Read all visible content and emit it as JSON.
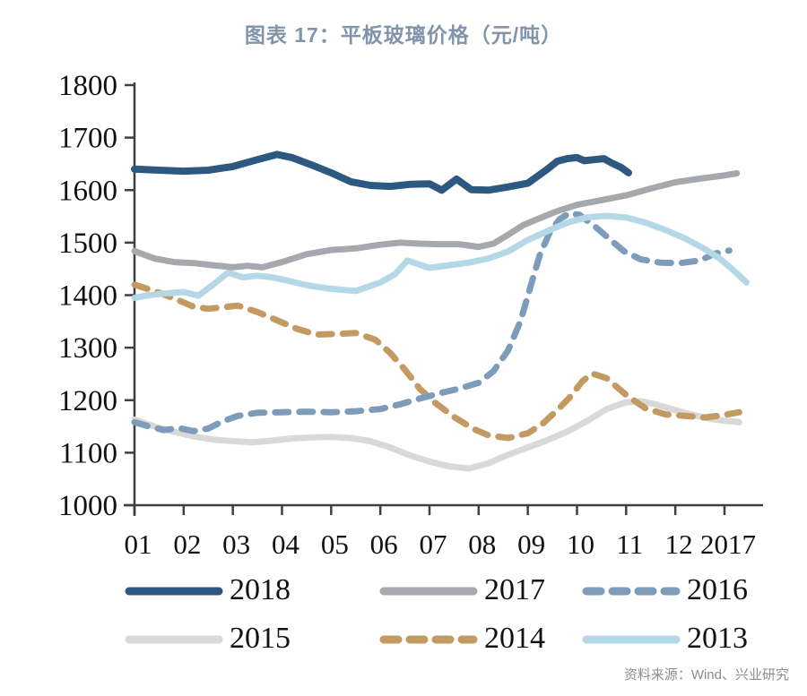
{
  "title": "图表 17：平板玻璃价格（元/吨）",
  "source": "资料来源：Wind、兴业研究",
  "chart_data": {
    "type": "line",
    "title": "图表 17：平板玻璃价格（元/吨）",
    "xlabel": "",
    "ylabel": "",
    "ylim": [
      1000,
      1800
    ],
    "grid": false,
    "legend_position": "bottom",
    "y_ticks": [
      1800,
      1700,
      1600,
      1500,
      1400,
      1300,
      1200,
      1100,
      1000
    ],
    "x_ticks": [
      {
        "m": 1,
        "label": "01"
      },
      {
        "m": 2,
        "label": "02"
      },
      {
        "m": 3,
        "label": "03"
      },
      {
        "m": 4,
        "label": "04"
      },
      {
        "m": 5,
        "label": "05"
      },
      {
        "m": 6,
        "label": "06"
      },
      {
        "m": 7,
        "label": "07"
      },
      {
        "m": 8,
        "label": "08"
      },
      {
        "m": 9,
        "label": "09"
      },
      {
        "m": 10,
        "label": "10"
      },
      {
        "m": 11,
        "label": "11"
      },
      {
        "m": 12,
        "label": "12"
      },
      {
        "m": 13,
        "label": "2017"
      }
    ],
    "series": [
      {
        "name": "2018",
        "color": "#2d5880",
        "style": "solid",
        "points": [
          [
            1,
            1640
          ],
          [
            1.5,
            1638
          ],
          [
            2,
            1636
          ],
          [
            2.5,
            1638
          ],
          [
            3,
            1645
          ],
          [
            3.5,
            1658
          ],
          [
            3.9,
            1668
          ],
          [
            4.2,
            1662
          ],
          [
            4.6,
            1648
          ],
          [
            5,
            1633
          ],
          [
            5.4,
            1616
          ],
          [
            5.8,
            1609
          ],
          [
            6.2,
            1607
          ],
          [
            6.6,
            1611
          ],
          [
            7,
            1612
          ],
          [
            7.25,
            1600
          ],
          [
            7.55,
            1621
          ],
          [
            7.85,
            1601
          ],
          [
            8.2,
            1600
          ],
          [
            8.6,
            1606
          ],
          [
            9,
            1613
          ],
          [
            9.4,
            1640
          ],
          [
            9.6,
            1655
          ],
          [
            9.8,
            1660
          ],
          [
            10,
            1662
          ],
          [
            10.15,
            1656
          ],
          [
            10.35,
            1658
          ],
          [
            10.55,
            1660
          ],
          [
            10.7,
            1652
          ],
          [
            10.9,
            1643
          ],
          [
            11.05,
            1633
          ]
        ]
      },
      {
        "name": "2017",
        "color": "#a5a9ad",
        "style": "solid",
        "points": [
          [
            1,
            1484
          ],
          [
            1.4,
            1470
          ],
          [
            1.8,
            1463
          ],
          [
            2.2,
            1461
          ],
          [
            2.6,
            1457
          ],
          [
            3,
            1453
          ],
          [
            3.3,
            1456
          ],
          [
            3.6,
            1453
          ],
          [
            4,
            1463
          ],
          [
            4.5,
            1478
          ],
          [
            5,
            1486
          ],
          [
            5.5,
            1489
          ],
          [
            6,
            1496
          ],
          [
            6.4,
            1500
          ],
          [
            6.8,
            1498
          ],
          [
            7.2,
            1497
          ],
          [
            7.6,
            1497
          ],
          [
            8,
            1492
          ],
          [
            8.3,
            1498
          ],
          [
            8.6,
            1515
          ],
          [
            8.9,
            1533
          ],
          [
            9.2,
            1545
          ],
          [
            9.6,
            1560
          ],
          [
            10,
            1572
          ],
          [
            10.5,
            1581
          ],
          [
            11,
            1590
          ],
          [
            11.5,
            1603
          ],
          [
            12,
            1615
          ],
          [
            12.5,
            1622
          ],
          [
            13,
            1628
          ],
          [
            13.25,
            1632
          ]
        ]
      },
      {
        "name": "2016",
        "color": "#7d9cba",
        "style": "dashed",
        "points": [
          [
            1,
            1158
          ],
          [
            1.3,
            1150
          ],
          [
            1.6,
            1143
          ],
          [
            1.9,
            1147
          ],
          [
            2.2,
            1141
          ],
          [
            2.5,
            1146
          ],
          [
            2.8,
            1160
          ],
          [
            3.1,
            1170
          ],
          [
            3.5,
            1176
          ],
          [
            4,
            1177
          ],
          [
            4.5,
            1178
          ],
          [
            5,
            1177
          ],
          [
            5.5,
            1179
          ],
          [
            6,
            1183
          ],
          [
            6.4,
            1192
          ],
          [
            6.8,
            1203
          ],
          [
            7.2,
            1213
          ],
          [
            7.6,
            1222
          ],
          [
            8,
            1233
          ],
          [
            8.3,
            1255
          ],
          [
            8.6,
            1295
          ],
          [
            8.85,
            1350
          ],
          [
            9.05,
            1415
          ],
          [
            9.25,
            1478
          ],
          [
            9.45,
            1520
          ],
          [
            9.65,
            1545
          ],
          [
            9.85,
            1556
          ],
          [
            10.05,
            1553
          ],
          [
            10.35,
            1532
          ],
          [
            10.65,
            1508
          ],
          [
            10.95,
            1484
          ],
          [
            11.3,
            1468
          ],
          [
            11.7,
            1462
          ],
          [
            12.1,
            1461
          ],
          [
            12.5,
            1466
          ],
          [
            12.8,
            1479
          ],
          [
            13.1,
            1485
          ]
        ]
      },
      {
        "name": "2015",
        "color": "#d9d9d9",
        "style": "solid",
        "points": [
          [
            1,
            1163
          ],
          [
            1.4,
            1150
          ],
          [
            1.8,
            1140
          ],
          [
            2.2,
            1131
          ],
          [
            2.6,
            1125
          ],
          [
            3,
            1122
          ],
          [
            3.4,
            1120
          ],
          [
            3.8,
            1123
          ],
          [
            4.2,
            1127
          ],
          [
            4.6,
            1129
          ],
          [
            5,
            1130
          ],
          [
            5.4,
            1128
          ],
          [
            5.8,
            1122
          ],
          [
            6.2,
            1110
          ],
          [
            6.6,
            1095
          ],
          [
            7,
            1083
          ],
          [
            7.4,
            1074
          ],
          [
            7.8,
            1070
          ],
          [
            8.2,
            1080
          ],
          [
            8.6,
            1096
          ],
          [
            9,
            1110
          ],
          [
            9.4,
            1124
          ],
          [
            9.8,
            1140
          ],
          [
            10.2,
            1160
          ],
          [
            10.6,
            1183
          ],
          [
            11,
            1196
          ],
          [
            11.3,
            1198
          ],
          [
            11.6,
            1192
          ],
          [
            12,
            1181
          ],
          [
            12.4,
            1171
          ],
          [
            12.8,
            1163
          ],
          [
            13.3,
            1158
          ]
        ]
      },
      {
        "name": "2014",
        "color": "#c39a62",
        "style": "dashed",
        "points": [
          [
            1,
            1420
          ],
          [
            1.4,
            1408
          ],
          [
            1.8,
            1394
          ],
          [
            2.2,
            1378
          ],
          [
            2.5,
            1374
          ],
          [
            2.8,
            1377
          ],
          [
            3.1,
            1380
          ],
          [
            3.5,
            1368
          ],
          [
            3.9,
            1352
          ],
          [
            4.3,
            1336
          ],
          [
            4.7,
            1325
          ],
          [
            5.1,
            1326
          ],
          [
            5.5,
            1328
          ],
          [
            5.9,
            1315
          ],
          [
            6.2,
            1290
          ],
          [
            6.5,
            1258
          ],
          [
            6.8,
            1222
          ],
          [
            7.1,
            1196
          ],
          [
            7.5,
            1168
          ],
          [
            7.9,
            1145
          ],
          [
            8.2,
            1133
          ],
          [
            8.6,
            1128
          ],
          [
            9,
            1137
          ],
          [
            9.3,
            1155
          ],
          [
            9.6,
            1181
          ],
          [
            9.85,
            1205
          ],
          [
            10.1,
            1235
          ],
          [
            10.3,
            1251
          ],
          [
            10.6,
            1242
          ],
          [
            11,
            1210
          ],
          [
            11.4,
            1184
          ],
          [
            11.8,
            1173
          ],
          [
            12.2,
            1170
          ],
          [
            12.6,
            1167
          ],
          [
            13,
            1172
          ],
          [
            13.3,
            1177
          ]
        ]
      },
      {
        "name": "2013",
        "color": "#b5d8e7",
        "style": "solid",
        "points": [
          [
            1,
            1395
          ],
          [
            1.3,
            1400
          ],
          [
            1.7,
            1404
          ],
          [
            2,
            1406
          ],
          [
            2.3,
            1399
          ],
          [
            2.6,
            1420
          ],
          [
            2.9,
            1443
          ],
          [
            3.2,
            1434
          ],
          [
            3.5,
            1437
          ],
          [
            3.8,
            1434
          ],
          [
            4.1,
            1428
          ],
          [
            4.5,
            1419
          ],
          [
            5,
            1412
          ],
          [
            5.5,
            1408
          ],
          [
            6,
            1424
          ],
          [
            6.3,
            1440
          ],
          [
            6.55,
            1466
          ],
          [
            6.8,
            1458
          ],
          [
            7,
            1452
          ],
          [
            7.4,
            1457
          ],
          [
            7.8,
            1462
          ],
          [
            8.2,
            1470
          ],
          [
            8.6,
            1483
          ],
          [
            9,
            1505
          ],
          [
            9.4,
            1522
          ],
          [
            9.8,
            1538
          ],
          [
            10.2,
            1548
          ],
          [
            10.6,
            1551
          ],
          [
            11,
            1548
          ],
          [
            11.4,
            1538
          ],
          [
            11.8,
            1524
          ],
          [
            12.2,
            1508
          ],
          [
            12.6,
            1488
          ],
          [
            12.9,
            1470
          ],
          [
            13.2,
            1446
          ],
          [
            13.45,
            1424
          ]
        ]
      }
    ]
  },
  "legend": {
    "row1": [
      "2018",
      "2017",
      "2016"
    ],
    "row2": [
      "2015",
      "2014",
      "2013"
    ]
  }
}
